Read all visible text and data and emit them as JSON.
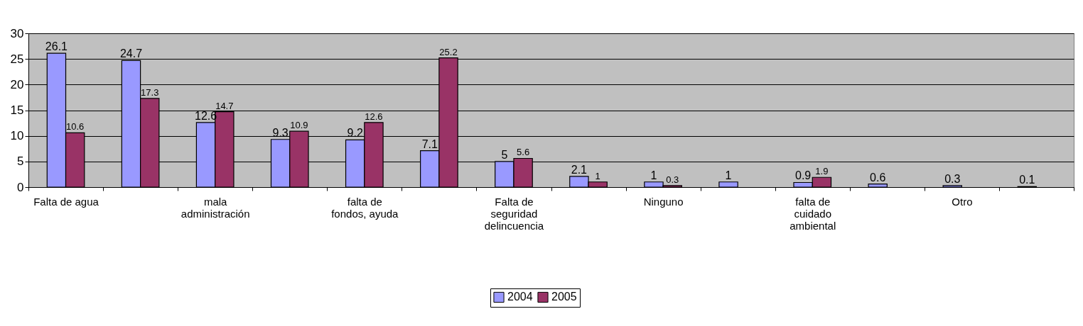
{
  "chart_data": {
    "type": "bar",
    "categories": [
      "Falta de agua",
      null,
      "mala administración",
      null,
      "falta de fondos, ayuda",
      null,
      "Falta de seguridad delincuencia",
      null,
      "Ninguno",
      null,
      "falta de cuidado ambiental",
      null,
      "Otro",
      null
    ],
    "series": [
      {
        "name": "2004",
        "color": "#9999ff",
        "values": [
          26.1,
          24.7,
          12.6,
          9.3,
          9.2,
          7.1,
          5,
          2.1,
          1,
          1,
          0.9,
          0.6,
          0.3,
          0.1
        ]
      },
      {
        "name": "2005",
        "color": "#993366",
        "values": [
          10.6,
          17.3,
          14.7,
          10.9,
          12.6,
          25.2,
          5.6,
          1,
          0.3,
          null,
          1.9,
          null,
          null,
          null
        ]
      }
    ],
    "ylim": [
      0,
      30
    ],
    "yticks": [
      0,
      5,
      10,
      15,
      20,
      25,
      30
    ],
    "grid": "y",
    "legend": "bottom",
    "data_labels": true
  }
}
